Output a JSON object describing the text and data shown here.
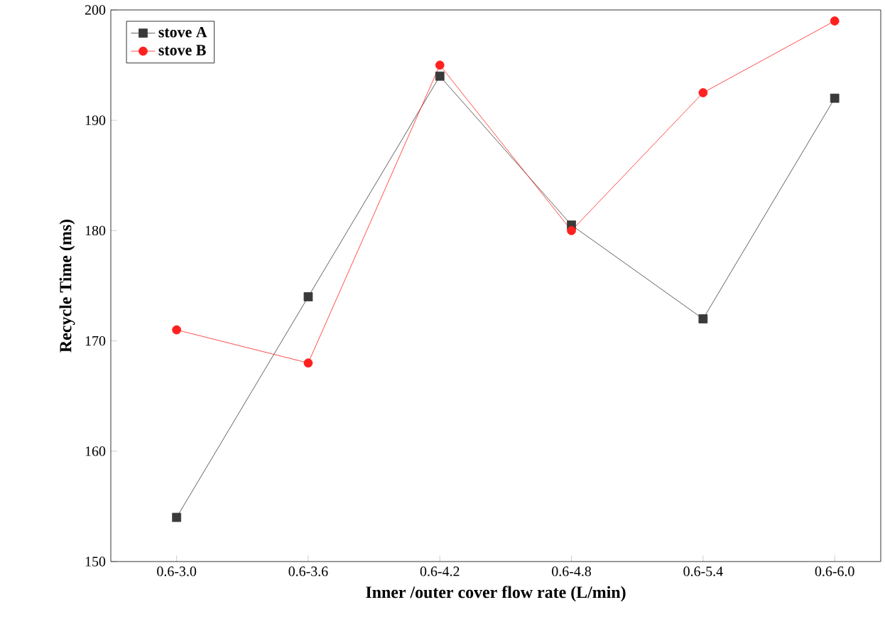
{
  "chart_data": {
    "type": "line",
    "xlabel": "Inner /outer cover flow rate (L/min)",
    "ylabel": "Recycle Time (ms)",
    "categories": [
      "0.6-3.0",
      "0.6-3.6",
      "0.6-4.2",
      "0.6-4.8",
      "0.6-5.4",
      "0.6-6.0"
    ],
    "series": [
      {
        "name": "stove A",
        "color": "#3a3a3a",
        "marker": "square",
        "values": [
          154,
          174,
          194,
          180.5,
          172,
          192
        ]
      },
      {
        "name": "stove B",
        "color": "#ff2020",
        "marker": "circle",
        "values": [
          171,
          168,
          195,
          180,
          192.5,
          199
        ]
      }
    ],
    "ylim": [
      150,
      200
    ],
    "yticks": [
      150,
      160,
      170,
      180,
      190,
      200
    ],
    "grid": false,
    "legend": "top left",
    "line_style": "solid"
  }
}
